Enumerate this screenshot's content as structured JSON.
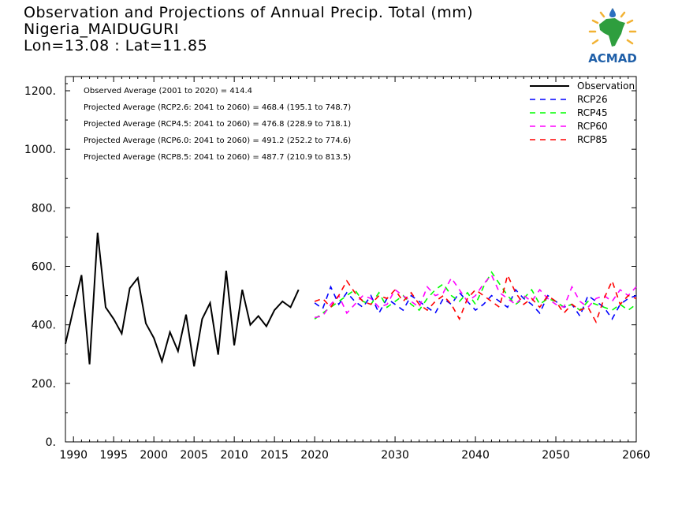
{
  "header": {
    "title_line1": "Observation and Projections of Annual Precip. Total (mm)",
    "title_line2": "Nigeria_MAIDUGURI",
    "title_line3": "Lon=13.08 : Lat=11.85"
  },
  "logo": {
    "text": "ACMAD",
    "icon": "acmad-africa-logo-icon"
  },
  "chart_data": {
    "type": "line",
    "title": "Observation and Projections of Annual Precip. Total (mm)",
    "xlim": [
      1989,
      2060
    ],
    "ylim": [
      0,
      1200
    ],
    "x_ticks": [
      1990,
      1995,
      2000,
      2005,
      2010,
      2015,
      2020,
      2030,
      2040,
      2050,
      2060
    ],
    "y_ticks": [
      0,
      200,
      400,
      600,
      800,
      1000,
      1200
    ],
    "y_tick_labels": [
      "0.",
      "200.",
      "400.",
      "600.",
      "800.",
      "1000.",
      "1200."
    ],
    "grid": false,
    "legend_position": "top-right",
    "annotations": [
      "Observed Average (2001 to 2020) = 414.4",
      "Projected Average (RCP2.6: 2041 to 2060) = 468.4 (195.1 to 748.7)",
      "Projected Average (RCP4.5: 2041 to 2060) = 476.8 (228.9 to 718.1)",
      "Projected Average (RCP6.0: 2041 to 2060) = 491.2 (252.2 to 774.6)",
      "Projected Average (RCP8.5: 2041 to 2060) = 487.7 (210.9 to 813.5)"
    ],
    "series": [
      {
        "name": "Observation",
        "color": "#000000",
        "dash": "solid",
        "x_start": 1989,
        "values": [
          335,
          455,
          570,
          265,
          715,
          460,
          420,
          370,
          525,
          560,
          405,
          355,
          275,
          375,
          310,
          435,
          258,
          420,
          475,
          298,
          585,
          330,
          520,
          400,
          430,
          395,
          450,
          480,
          460,
          520
        ]
      },
      {
        "name": "RCP26",
        "color": "#0000ff",
        "dash": "dashed",
        "x_start": 2020,
        "values": [
          475,
          455,
          530,
          470,
          510,
          480,
          460,
          500,
          440,
          490,
          470,
          450,
          500,
          480,
          460,
          440,
          490,
          470,
          510,
          480,
          450,
          470,
          500,
          480,
          460,
          520,
          490,
          470,
          440,
          500,
          480,
          460,
          470,
          430,
          500,
          480,
          460,
          420,
          470,
          490,
          500
        ]
      },
      {
        "name": "RCP45",
        "color": "#00ff00",
        "dash": "dashed",
        "x_start": 2020,
        "values": [
          420,
          440,
          460,
          480,
          500,
          520,
          480,
          470,
          510,
          460,
          480,
          500,
          470,
          450,
          490,
          520,
          540,
          500,
          480,
          510,
          470,
          530,
          580,
          540,
          500,
          470,
          490,
          520,
          470,
          490,
          480,
          460,
          470,
          450,
          480,
          470,
          460,
          450,
          470,
          450,
          470
        ]
      },
      {
        "name": "RCP60",
        "color": "#ff00ff",
        "dash": "dashed",
        "x_start": 2020,
        "values": [
          425,
          430,
          470,
          500,
          440,
          470,
          500,
          490,
          460,
          470,
          520,
          500,
          480,
          460,
          530,
          500,
          510,
          560,
          520,
          480,
          500,
          540,
          570,
          510,
          490,
          470,
          500,
          480,
          520,
          490,
          470,
          460,
          530,
          480,
          460,
          490,
          500,
          480,
          520,
          500,
          530
        ]
      },
      {
        "name": "RCP85",
        "color": "#ff0000",
        "dash": "dashed",
        "x_start": 2020,
        "values": [
          480,
          490,
          460,
          500,
          550,
          510,
          480,
          470,
          500,
          490,
          520,
          480,
          510,
          470,
          450,
          480,
          500,
          470,
          420,
          490,
          520,
          500,
          480,
          460,
          570,
          510,
          470,
          490,
          460,
          500,
          480,
          440,
          470,
          450,
          460,
          410,
          490,
          550,
          470,
          500,
          490
        ]
      }
    ]
  }
}
